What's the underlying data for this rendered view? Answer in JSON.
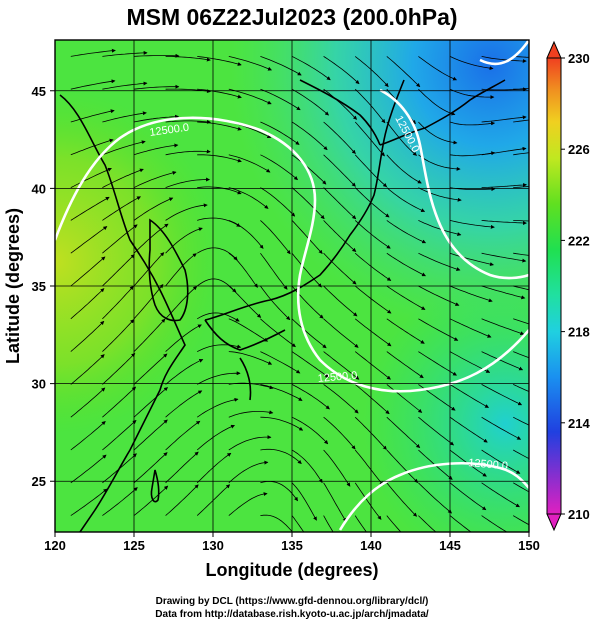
{
  "title": "MSM 06Z22Jul2023 (200.0hPa)",
  "xlabel": "Longitude (degrees)",
  "ylabel": "Latitude  (degrees)",
  "credit_line1": "Drawing by DCL (https://www.gfd-dennou.org/library/dcl/)",
  "credit_line2": "Data from http://database.rish.kyoto-u.ac.jp/arch/jmadata/",
  "map": {
    "lon_range": [
      120,
      150
    ],
    "lat_range": [
      22.4,
      47.6
    ],
    "lon_ticks": [
      "120",
      "125",
      "130",
      "135",
      "140",
      "145",
      "150"
    ],
    "lat_ticks": [
      "25",
      "30",
      "35",
      "40",
      "45"
    ],
    "grid_lon": [
      125,
      130,
      135,
      140,
      145
    ],
    "grid_lat": [
      25,
      30,
      35,
      40,
      45
    ]
  },
  "colorbar": {
    "min": 210,
    "max": 230,
    "ticks": [
      "210",
      "214",
      "218",
      "222",
      "226",
      "230"
    ],
    "colors": [
      "#e020c0",
      "#8030d0",
      "#2040e0",
      "#1a90f0",
      "#20d0e0",
      "#20e0a0",
      "#20e050",
      "#60e020",
      "#c0e820",
      "#f0d020",
      "#f09020",
      "#f04020"
    ]
  },
  "contour_labels": [
    "12500.0",
    "12500.0",
    "12500.0",
    "12500.0"
  ],
  "icons": {
    "triangle_top": "triangle-up-icon",
    "triangle_bottom": "triangle-down-icon"
  }
}
